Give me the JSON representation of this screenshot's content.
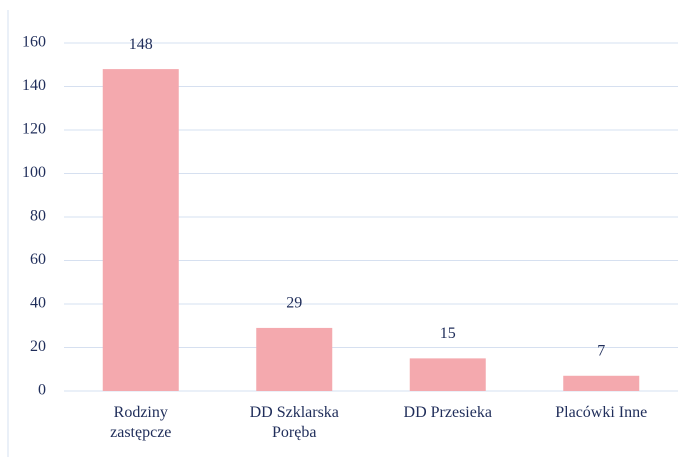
{
  "chart_data": {
    "type": "bar",
    "categories": [
      "Rodziny zastępcze",
      "DD Szklarska Poręba",
      "DD Przesieka",
      "Placówki Inne"
    ],
    "values": [
      148,
      29,
      15,
      7
    ],
    "color": "#f4a9ae",
    "ylim": [
      0,
      160
    ],
    "yticks": [
      0,
      20,
      40,
      60,
      80,
      100,
      120,
      140,
      160
    ],
    "grid": true
  }
}
